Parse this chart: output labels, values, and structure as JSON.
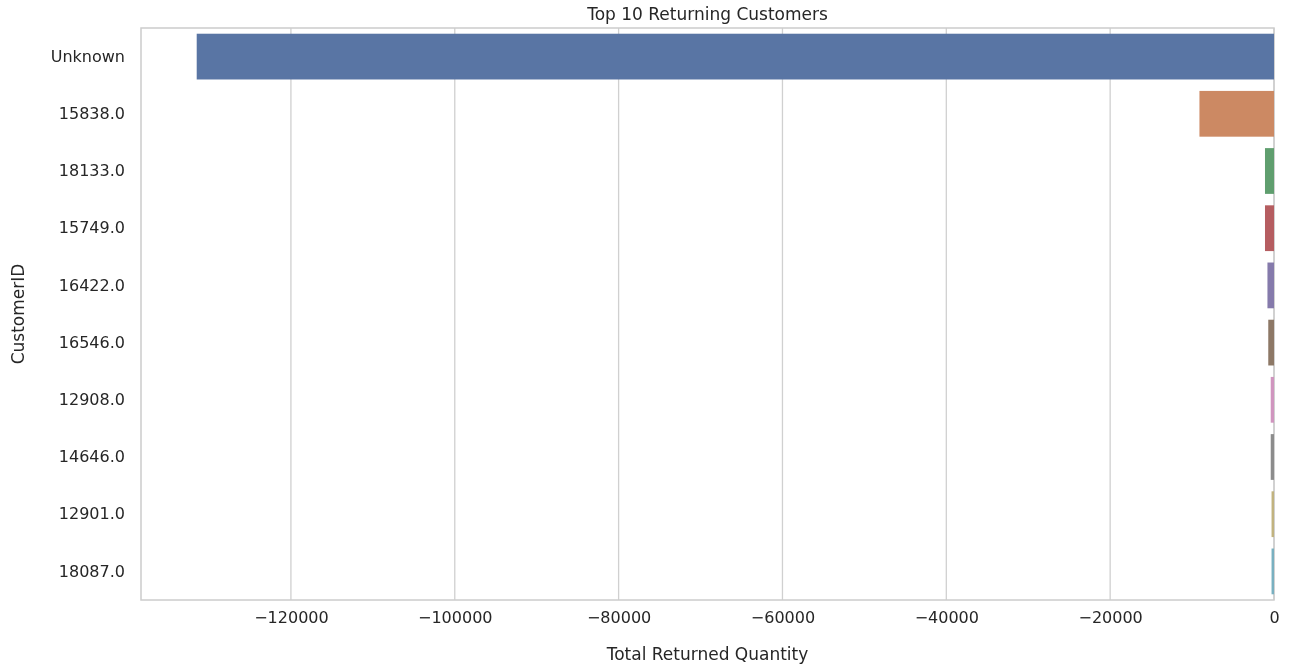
{
  "chart_data": {
    "type": "bar",
    "orientation": "horizontal",
    "title": "Top 10 Returning Customers",
    "xlabel": "Total Returned Quantity",
    "ylabel": "CustomerID",
    "categories": [
      "Unknown",
      "15838.0",
      "18133.0",
      "15749.0",
      "16422.0",
      "16546.0",
      "12908.0",
      "14646.0",
      "12901.0",
      "18087.0"
    ],
    "values": [
      -131500,
      -9100,
      -1100,
      -1100,
      -800,
      -700,
      -400,
      -400,
      -300,
      -300
    ],
    "colors": [
      "#5975a4",
      "#cc8963",
      "#5f9e6e",
      "#b55d60",
      "#857aab",
      "#8d7866",
      "#d095bf",
      "#8c8c8c",
      "#c1b37f",
      "#79b0c0"
    ],
    "xlim": [
      -138300,
      0
    ],
    "xticks": [
      {
        "value": -120000,
        "label": "−120000"
      },
      {
        "value": -100000,
        "label": "−100000"
      },
      {
        "value": -80000,
        "label": "−80000"
      },
      {
        "value": -60000,
        "label": "−60000"
      },
      {
        "value": -40000,
        "label": "−40000"
      },
      {
        "value": -20000,
        "label": "−20000"
      },
      0
    ],
    "grid": "x"
  }
}
